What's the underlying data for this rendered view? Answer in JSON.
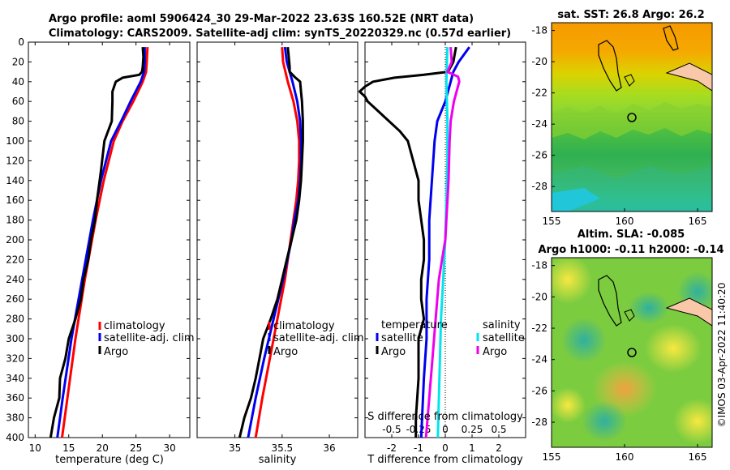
{
  "title_line1": "Argo profile: aoml 5906424_30 29-Mar-2022 23.63S 160.52E (NRT data)",
  "title_line2": "Climatology: CARS2009. Satellite-adj clim: synTS_20220329.nc (0.57d earlier)",
  "copyright": "©IMOS 03-Apr-2022 11:40:20",
  "colors": {
    "climatology": "#ff0000",
    "satellite": "#0000ee",
    "argo": "#000000",
    "s_satellite": "#00e5ee",
    "s_argo": "#ee00ee",
    "land": "#f8c8a8"
  },
  "chart_data": [
    {
      "type": "line",
      "name": "temperature",
      "xlabel": "temperature (deg C)",
      "xlim": [
        9,
        33
      ],
      "xticks": [
        10,
        15,
        20,
        25,
        30
      ],
      "ylim": [
        0,
        400
      ],
      "yticks": [
        0,
        20,
        40,
        60,
        80,
        100,
        120,
        140,
        160,
        180,
        200,
        220,
        240,
        260,
        280,
        300,
        320,
        340,
        360,
        380,
        400
      ],
      "legend": [
        "climatology",
        "satellite-adj. clim",
        "Argo"
      ],
      "series": [
        {
          "name": "climatology",
          "depth": [
            5,
            20,
            30,
            40,
            60,
            80,
            100,
            140,
            180,
            240,
            300,
            360,
            400
          ],
          "values": [
            26.7,
            26.6,
            26.5,
            26.0,
            24.6,
            23.0,
            21.7,
            20.2,
            19.0,
            17.4,
            16.0,
            14.8,
            14.0
          ]
        },
        {
          "name": "satellite-adj. clim",
          "depth": [
            5,
            20,
            30,
            40,
            60,
            80,
            100,
            140,
            180,
            240,
            300,
            360,
            400
          ],
          "values": [
            26.3,
            26.3,
            26.2,
            25.7,
            24.2,
            22.8,
            21.3,
            19.8,
            18.6,
            17.0,
            15.4,
            14.1,
            13.3
          ]
        },
        {
          "name": "Argo",
          "depth": [
            5,
            15,
            25,
            30,
            33,
            36,
            40,
            50,
            60,
            80,
            100,
            130,
            160,
            180,
            200,
            220,
            240,
            260,
            280,
            300,
            320,
            340,
            360,
            380,
            400
          ],
          "values": [
            26.0,
            26.1,
            26.0,
            25.9,
            25.5,
            23.0,
            22.0,
            21.5,
            21.5,
            21.4,
            20.3,
            19.8,
            19.2,
            18.9,
            18.3,
            17.9,
            17.2,
            16.8,
            16.0,
            15.0,
            14.5,
            13.7,
            13.6,
            12.8,
            12.3
          ]
        }
      ]
    },
    {
      "type": "line",
      "name": "salinity",
      "xlabel": "salinity",
      "xlim": [
        34.6,
        36.3
      ],
      "xticks": [
        35,
        35.5,
        36
      ],
      "ylim": [
        0,
        400
      ],
      "yticks": [
        0,
        20,
        40,
        60,
        80,
        100,
        120,
        140,
        160,
        180,
        200,
        220,
        240,
        260,
        280,
        300,
        320,
        340,
        360,
        380,
        400
      ],
      "legend": [
        "climatology",
        "satellite-adj. clim",
        "Argo"
      ],
      "series": [
        {
          "name": "climatology",
          "depth": [
            5,
            20,
            40,
            60,
            80,
            100,
            120,
            140,
            160,
            180,
            200,
            240,
            280,
            320,
            360,
            400
          ],
          "values": [
            35.5,
            35.51,
            35.56,
            35.62,
            35.66,
            35.68,
            35.68,
            35.67,
            35.65,
            35.62,
            35.59,
            35.53,
            35.45,
            35.37,
            35.29,
            35.22
          ]
        },
        {
          "name": "satellite-adj. clim",
          "depth": [
            5,
            20,
            40,
            60,
            80,
            100,
            120,
            140,
            160,
            180,
            200,
            240,
            280,
            320,
            360,
            400
          ],
          "values": [
            35.53,
            35.55,
            35.61,
            35.66,
            35.69,
            35.7,
            35.7,
            35.69,
            35.67,
            35.63,
            35.6,
            35.51,
            35.41,
            35.31,
            35.22,
            35.14
          ]
        },
        {
          "name": "Argo",
          "depth": [
            5,
            15,
            25,
            30,
            35,
            40,
            50,
            60,
            80,
            100,
            120,
            140,
            160,
            180,
            200,
            220,
            240,
            260,
            280,
            300,
            320,
            340,
            360,
            380,
            400
          ],
          "values": [
            35.56,
            35.57,
            35.58,
            35.58,
            35.63,
            35.69,
            35.7,
            35.71,
            35.72,
            35.72,
            35.71,
            35.7,
            35.68,
            35.65,
            35.6,
            35.55,
            35.5,
            35.45,
            35.38,
            35.3,
            35.26,
            35.22,
            35.17,
            35.1,
            35.05
          ]
        }
      ]
    },
    {
      "type": "line",
      "name": "difference",
      "xlabel": "T difference from climatology",
      "xlabel2": "S difference from climatology",
      "xlim": [
        -3,
        3
      ],
      "xticks": [
        -2,
        -1,
        0,
        1,
        2
      ],
      "x2lim": [
        -0.75,
        0.75
      ],
      "x2ticks": [
        -0.5,
        -0.25,
        0,
        0.25,
        0.5
      ],
      "ylim": [
        0,
        400
      ],
      "legend_t_title": "temperature",
      "legend_s_title": "salinity",
      "legend_t": [
        "satellite",
        "Argo"
      ],
      "legend_s": [
        "satellite",
        "Argo"
      ],
      "series": [
        {
          "name": "T satellite",
          "axis": "T",
          "depth": [
            5,
            20,
            30,
            40,
            50,
            60,
            80,
            100,
            140,
            180,
            220,
            260,
            300,
            340,
            400
          ],
          "values": [
            0.9,
            0.5,
            0.3,
            0.2,
            0.1,
            0.0,
            -0.3,
            -0.4,
            -0.5,
            -0.6,
            -0.6,
            -0.7,
            -0.7,
            -0.8,
            -0.9
          ]
        },
        {
          "name": "T Argo",
          "axis": "T",
          "depth": [
            5,
            20,
            30,
            33,
            36,
            40,
            45,
            50,
            55,
            60,
            70,
            80,
            90,
            100,
            120,
            140,
            160,
            180,
            200,
            220,
            240,
            260,
            280,
            300,
            320,
            340,
            360,
            380,
            400
          ],
          "values": [
            0.4,
            0.3,
            0.1,
            -0.8,
            -1.9,
            -2.7,
            -3.0,
            -3.2,
            -3.0,
            -2.9,
            -2.5,
            -2.1,
            -1.7,
            -1.4,
            -1.2,
            -1.0,
            -1.0,
            -0.9,
            -0.8,
            -0.8,
            -0.9,
            -0.9,
            -0.8,
            -1.0,
            -1.0,
            -1.0,
            -1.05,
            -1.1,
            -1.1
          ]
        },
        {
          "name": "S satellite",
          "axis": "S",
          "depth": [
            5,
            40,
            80,
            120,
            160,
            200,
            240,
            280,
            320,
            360,
            400
          ],
          "values": [
            0.02,
            0.01,
            0.02,
            0.02,
            0.01,
            0.0,
            -0.02,
            -0.04,
            -0.05,
            -0.06,
            -0.07
          ]
        },
        {
          "name": "S Argo",
          "axis": "S",
          "depth": [
            5,
            20,
            30,
            35,
            40,
            60,
            80,
            100,
            140,
            180,
            200,
            220,
            240,
            280,
            320,
            360,
            400
          ],
          "values": [
            0.05,
            0.06,
            0.02,
            0.12,
            0.13,
            0.08,
            0.05,
            0.04,
            0.03,
            0.01,
            0.0,
            -0.03,
            -0.06,
            -0.09,
            -0.12,
            -0.15,
            -0.18
          ]
        }
      ]
    }
  ],
  "map_sst": {
    "title": "sat. SST: 26.8 Argo: 26.2",
    "xticks": [
      "155",
      "160",
      "165"
    ],
    "yticks": [
      "-18",
      "-20",
      "-22",
      "-24",
      "-26",
      "-28"
    ]
  },
  "map_sla": {
    "title1": "Altim. SLA: -0.085",
    "title2": "Argo h1000: -0.11 h2000: -0.14",
    "xticks": [
      "155",
      "160",
      "165"
    ],
    "yticks": [
      "-18",
      "-20",
      "-22",
      "-24",
      "-26",
      "-28"
    ]
  }
}
